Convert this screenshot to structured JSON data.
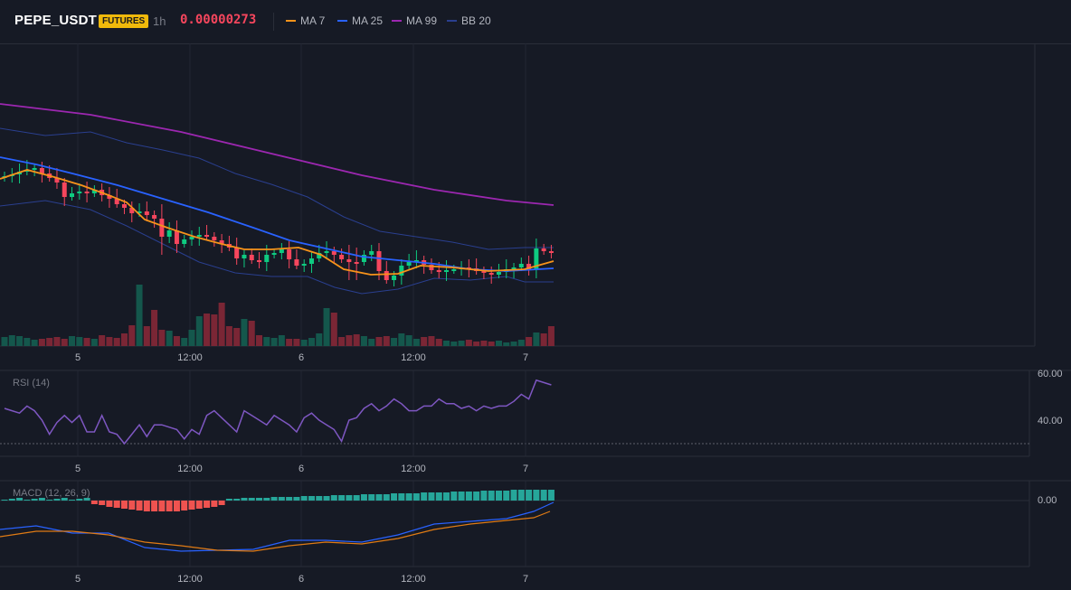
{
  "header": {
    "symbol": "PEPE_USDT",
    "badge": "FUTURES",
    "interval": "1h",
    "price": "0.00000273",
    "legend": [
      {
        "label": "MA 7",
        "color": "#f7931a"
      },
      {
        "label": "MA 25",
        "color": "#2962ff"
      },
      {
        "label": "MA 99",
        "color": "#9c27b0"
      },
      {
        "label": "BB 20",
        "color": "#1e3a8a"
      }
    ]
  },
  "colors": {
    "background": "#161a25",
    "up": "#0ecb81",
    "down": "#f6465d",
    "volume_up": "#14574c",
    "volume_down": "#7a2635",
    "rsi_line": "#7e57c2",
    "macd_line": "#2962ff",
    "signal_line": "#e07b14",
    "hist_up": "#26a69a",
    "hist_down": "#ef5350"
  },
  "time_axis": [
    "5",
    "12:00",
    "6",
    "12:00",
    "7"
  ],
  "rsi": {
    "label": "RSI (14)",
    "axis": [
      "60.00",
      "40.00"
    ],
    "values": [
      45,
      44,
      43,
      46,
      44,
      40,
      34,
      39,
      42,
      39,
      42,
      35,
      35,
      42,
      35,
      34,
      30,
      34,
      38,
      33,
      38,
      38,
      37,
      36,
      32,
      36,
      34,
      42,
      44,
      41,
      38,
      35,
      44,
      42,
      40,
      38,
      42,
      40,
      38,
      35,
      41,
      43,
      40,
      38,
      36,
      31,
      40,
      41,
      45,
      47,
      44,
      46,
      49,
      47,
      44,
      44,
      46,
      46,
      49,
      47,
      47,
      45,
      46,
      44,
      46,
      45,
      46,
      46,
      48,
      51,
      49,
      57,
      56,
      55
    ]
  },
  "macd": {
    "label": "MACD (12, 26, 9)",
    "axis": [
      "0.00"
    ]
  }
}
